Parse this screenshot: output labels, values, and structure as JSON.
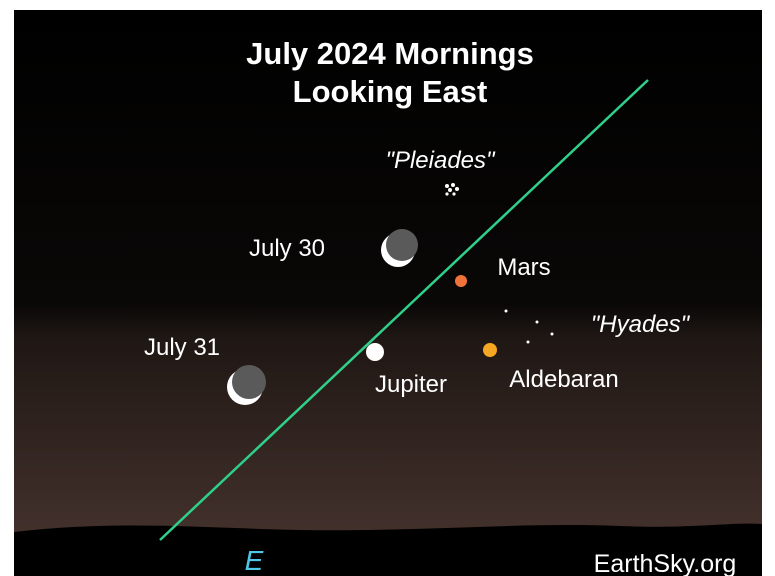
{
  "title": {
    "line1": "July 2024 Mornings",
    "line2": "Looking East"
  },
  "labels": {
    "pleiades": "\"Pleiades\"",
    "july30": "July 30",
    "mars": "Mars",
    "hyades": "\"Hyades\"",
    "july31": "July 31",
    "jupiter": "Jupiter",
    "aldebaran": "Aldebaran"
  },
  "direction": "E",
  "credit": "EarthSky.org"
}
